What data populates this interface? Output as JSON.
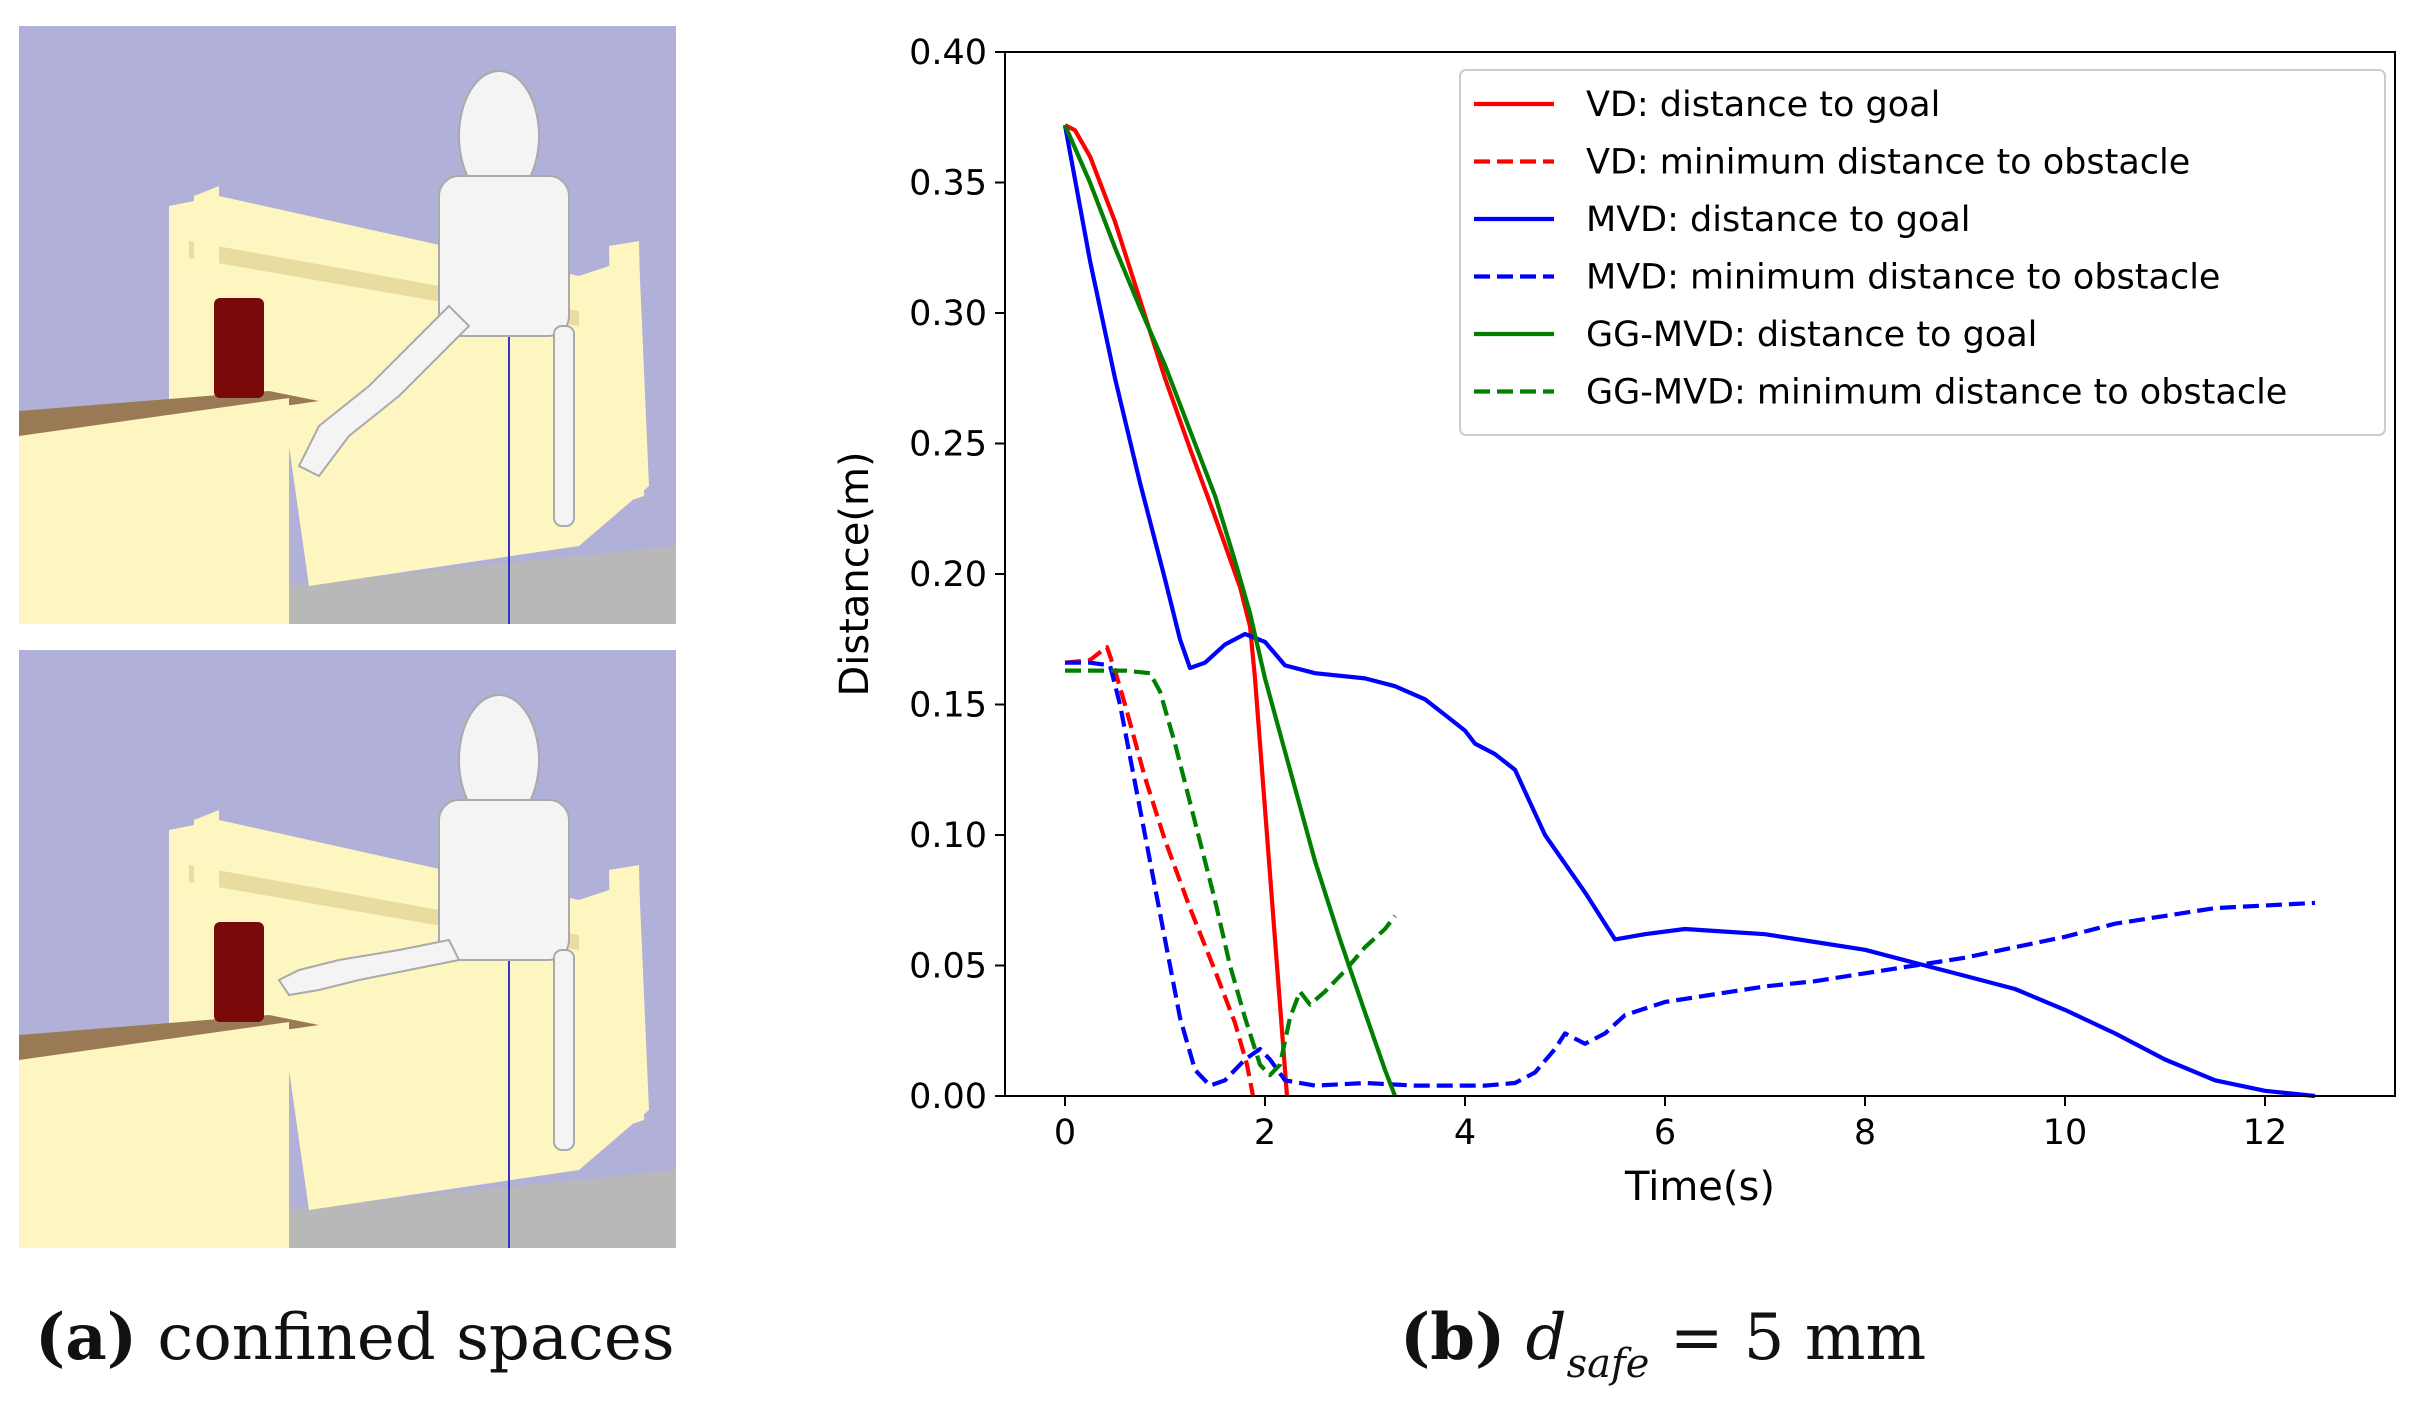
{
  "figure": {
    "panel_a": {
      "caption_label": "(a)",
      "caption_text": "confined spaces"
    },
    "panel_b": {
      "caption_label": "(b)",
      "caption_var": "d",
      "caption_sub": "safe",
      "caption_rest": " = 5 mm"
    }
  },
  "colors": {
    "sky": "#b0b0d8",
    "furniture": "#fdf6c0",
    "furniture_shade": "#e8dca0",
    "tabletop": "#9a7a55",
    "floor": "#b8b8b8",
    "cylinder": "#7a0a0a",
    "robot": "#f4f4f4"
  },
  "chart_data": {
    "type": "line",
    "title": "",
    "xlabel": "Time(s)",
    "ylabel": "Distance(m)",
    "xlim": [
      -0.6,
      13.3
    ],
    "ylim": [
      0.0,
      0.4
    ],
    "xticks": [
      0,
      2,
      4,
      6,
      8,
      10,
      12
    ],
    "yticks": [
      0.0,
      0.05,
      0.1,
      0.15,
      0.2,
      0.25,
      0.3,
      0.35,
      0.4
    ],
    "xtick_labels": [
      "0",
      "2",
      "4",
      "6",
      "8",
      "10",
      "12"
    ],
    "ytick_labels": [
      "0.00",
      "0.05",
      "0.10",
      "0.15",
      "0.20",
      "0.25",
      "0.30",
      "0.35",
      "0.40"
    ],
    "legend_position": "upper-right",
    "grid": false,
    "series": [
      {
        "name": "VD: distance to goal",
        "color": "#ff0000",
        "dash": "solid",
        "points": [
          [
            0.0,
            0.372
          ],
          [
            0.1,
            0.37
          ],
          [
            0.25,
            0.36
          ],
          [
            0.5,
            0.335
          ],
          [
            0.75,
            0.305
          ],
          [
            1.0,
            0.275
          ],
          [
            1.25,
            0.248
          ],
          [
            1.5,
            0.222
          ],
          [
            1.75,
            0.195
          ],
          [
            1.85,
            0.18
          ],
          [
            1.9,
            0.16
          ],
          [
            2.0,
            0.11
          ],
          [
            2.1,
            0.06
          ],
          [
            2.2,
            0.01
          ],
          [
            2.22,
            0.0
          ]
        ]
      },
      {
        "name": "VD: minimum distance to obstacle",
        "color": "#ff0000",
        "dash": "dashed",
        "points": [
          [
            0.0,
            0.166
          ],
          [
            0.25,
            0.167
          ],
          [
            0.35,
            0.17
          ],
          [
            0.42,
            0.172
          ],
          [
            0.5,
            0.163
          ],
          [
            0.6,
            0.15
          ],
          [
            0.8,
            0.122
          ],
          [
            1.0,
            0.098
          ],
          [
            1.25,
            0.072
          ],
          [
            1.5,
            0.048
          ],
          [
            1.7,
            0.028
          ],
          [
            1.82,
            0.012
          ],
          [
            1.88,
            0.0
          ]
        ]
      },
      {
        "name": "MVD: distance to goal",
        "color": "#0000ff",
        "dash": "solid",
        "points": [
          [
            0.0,
            0.372
          ],
          [
            0.25,
            0.32
          ],
          [
            0.5,
            0.275
          ],
          [
            0.75,
            0.235
          ],
          [
            1.0,
            0.198
          ],
          [
            1.15,
            0.175
          ],
          [
            1.25,
            0.164
          ],
          [
            1.4,
            0.166
          ],
          [
            1.6,
            0.173
          ],
          [
            1.8,
            0.177
          ],
          [
            2.0,
            0.174
          ],
          [
            2.2,
            0.165
          ],
          [
            2.5,
            0.162
          ],
          [
            3.0,
            0.16
          ],
          [
            3.3,
            0.157
          ],
          [
            3.6,
            0.152
          ],
          [
            3.8,
            0.146
          ],
          [
            4.0,
            0.14
          ],
          [
            4.1,
            0.135
          ],
          [
            4.3,
            0.131
          ],
          [
            4.5,
            0.125
          ],
          [
            4.8,
            0.1
          ],
          [
            5.2,
            0.078
          ],
          [
            5.5,
            0.06
          ],
          [
            5.8,
            0.062
          ],
          [
            6.2,
            0.064
          ],
          [
            6.6,
            0.063
          ],
          [
            7.0,
            0.062
          ],
          [
            7.5,
            0.059
          ],
          [
            8.0,
            0.056
          ],
          [
            8.5,
            0.051
          ],
          [
            9.0,
            0.046
          ],
          [
            9.5,
            0.041
          ],
          [
            10.0,
            0.033
          ],
          [
            10.5,
            0.024
          ],
          [
            11.0,
            0.014
          ],
          [
            11.5,
            0.006
          ],
          [
            12.0,
            0.002
          ],
          [
            12.5,
            0.0
          ]
        ]
      },
      {
        "name": "MVD: minimum distance to obstacle",
        "color": "#0000ff",
        "dash": "dashed",
        "points": [
          [
            0.0,
            0.166
          ],
          [
            0.25,
            0.166
          ],
          [
            0.45,
            0.165
          ],
          [
            0.55,
            0.15
          ],
          [
            0.7,
            0.12
          ],
          [
            0.85,
            0.09
          ],
          [
            1.0,
            0.06
          ],
          [
            1.15,
            0.03
          ],
          [
            1.3,
            0.01
          ],
          [
            1.45,
            0.004
          ],
          [
            1.6,
            0.006
          ],
          [
            1.8,
            0.014
          ],
          [
            1.95,
            0.018
          ],
          [
            2.05,
            0.014
          ],
          [
            2.2,
            0.006
          ],
          [
            2.5,
            0.004
          ],
          [
            3.0,
            0.005
          ],
          [
            3.5,
            0.004
          ],
          [
            4.0,
            0.004
          ],
          [
            4.2,
            0.004
          ],
          [
            4.5,
            0.005
          ],
          [
            4.7,
            0.009
          ],
          [
            4.9,
            0.018
          ],
          [
            5.0,
            0.024
          ],
          [
            5.2,
            0.02
          ],
          [
            5.4,
            0.024
          ],
          [
            5.6,
            0.031
          ],
          [
            6.0,
            0.036
          ],
          [
            6.5,
            0.039
          ],
          [
            7.0,
            0.042
          ],
          [
            7.5,
            0.044
          ],
          [
            8.0,
            0.047
          ],
          [
            8.5,
            0.05
          ],
          [
            9.0,
            0.053
          ],
          [
            9.5,
            0.057
          ],
          [
            10.0,
            0.061
          ],
          [
            10.5,
            0.066
          ],
          [
            11.0,
            0.069
          ],
          [
            11.5,
            0.072
          ],
          [
            12.0,
            0.073
          ],
          [
            12.5,
            0.074
          ]
        ]
      },
      {
        "name": "GG-MVD: distance to goal",
        "color": "#007f00",
        "dash": "solid",
        "points": [
          [
            0.0,
            0.372
          ],
          [
            0.25,
            0.35
          ],
          [
            0.5,
            0.325
          ],
          [
            0.75,
            0.302
          ],
          [
            1.0,
            0.28
          ],
          [
            1.25,
            0.255
          ],
          [
            1.5,
            0.23
          ],
          [
            1.7,
            0.205
          ],
          [
            1.85,
            0.185
          ],
          [
            2.0,
            0.16
          ],
          [
            2.25,
            0.125
          ],
          [
            2.5,
            0.09
          ],
          [
            2.75,
            0.06
          ],
          [
            3.0,
            0.032
          ],
          [
            3.2,
            0.01
          ],
          [
            3.3,
            0.0
          ]
        ]
      },
      {
        "name": "GG-MVD: minimum distance to obstacle",
        "color": "#007f00",
        "dash": "dashed",
        "points": [
          [
            0.0,
            0.163
          ],
          [
            0.3,
            0.163
          ],
          [
            0.6,
            0.163
          ],
          [
            0.85,
            0.162
          ],
          [
            0.95,
            0.155
          ],
          [
            1.1,
            0.135
          ],
          [
            1.3,
            0.105
          ],
          [
            1.5,
            0.075
          ],
          [
            1.65,
            0.05
          ],
          [
            1.8,
            0.03
          ],
          [
            1.95,
            0.012
          ],
          [
            2.05,
            0.008
          ],
          [
            2.15,
            0.012
          ],
          [
            2.25,
            0.03
          ],
          [
            2.35,
            0.04
          ],
          [
            2.45,
            0.035
          ],
          [
            2.6,
            0.04
          ],
          [
            2.8,
            0.048
          ],
          [
            3.0,
            0.057
          ],
          [
            3.2,
            0.064
          ],
          [
            3.3,
            0.069
          ]
        ]
      }
    ]
  }
}
